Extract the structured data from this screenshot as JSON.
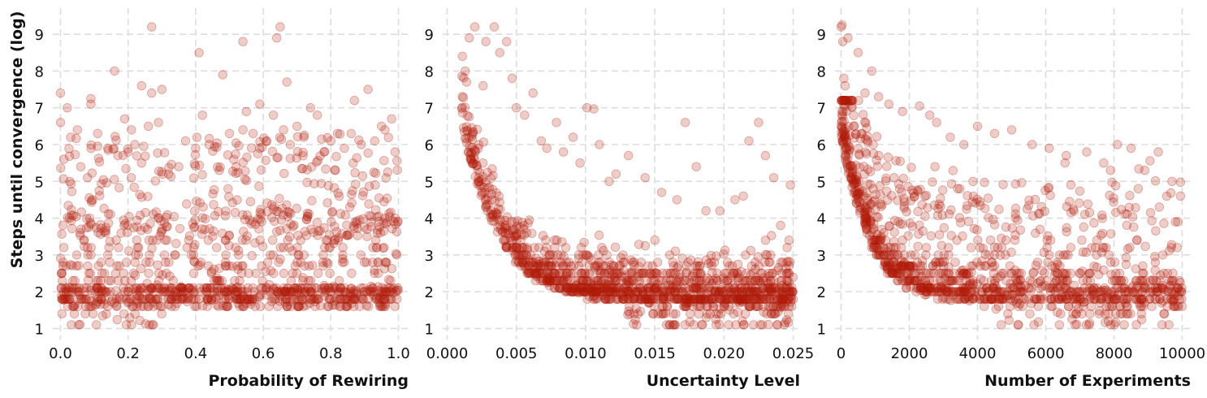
{
  "chart_data": [
    {
      "type": "scatter",
      "xlabel": "Probability of Rewiring",
      "ylabel": "Steps until convergence (log)",
      "xlim": [
        -0.03,
        1.03
      ],
      "ylim": [
        0.7,
        9.6
      ],
      "xticks": [
        0.0,
        0.2,
        0.4,
        0.6,
        0.8,
        1.0
      ],
      "xtick_labels": [
        "0.0",
        "0.2",
        "0.4",
        "0.6",
        "0.8",
        "1.0"
      ],
      "yticks": [
        1,
        2,
        3,
        4,
        5,
        6,
        7,
        8,
        9
      ],
      "ytick_labels": [
        "1",
        "2",
        "3",
        "4",
        "5",
        "6",
        "7",
        "8",
        "9"
      ],
      "grid": true,
      "color": "#b01a0a",
      "points": [
        [
          0.0,
          7.4
        ],
        [
          0.0,
          6.6
        ],
        [
          0.02,
          7.0
        ],
        [
          0.03,
          6.2
        ],
        [
          0.05,
          6.4
        ],
        [
          0.01,
          5.6
        ],
        [
          0.06,
          5.4
        ],
        [
          0.08,
          5.1
        ],
        [
          0.09,
          7.1
        ],
        [
          0.09,
          7.25
        ],
        [
          0.11,
          6.3
        ],
        [
          0.14,
          5.9
        ],
        [
          0.16,
          8.0
        ],
        [
          0.17,
          5.7
        ],
        [
          0.19,
          6.7
        ],
        [
          0.2,
          5.8
        ],
        [
          0.21,
          6.4
        ],
        [
          0.22,
          6.0
        ],
        [
          0.24,
          5.5
        ],
        [
          0.24,
          7.6
        ],
        [
          0.26,
          6.5
        ],
        [
          0.27,
          9.2
        ],
        [
          0.27,
          7.4
        ],
        [
          0.3,
          7.5
        ],
        [
          0.29,
          6.6
        ],
        [
          0.32,
          5.2
        ],
        [
          0.35,
          5.4
        ],
        [
          0.37,
          6.1
        ],
        [
          0.4,
          5.9
        ],
        [
          0.41,
          8.5
        ],
        [
          0.42,
          6.8
        ],
        [
          0.44,
          6.0
        ],
        [
          0.47,
          5.3
        ],
        [
          0.48,
          7.9
        ],
        [
          0.5,
          6.3
        ],
        [
          0.52,
          5.4
        ],
        [
          0.54,
          6.4
        ],
        [
          0.54,
          8.8
        ],
        [
          0.55,
          6.9
        ],
        [
          0.57,
          6.3
        ],
        [
          0.59,
          7.1
        ],
        [
          0.59,
          5.9
        ],
        [
          0.61,
          6.1
        ],
        [
          0.63,
          6.8
        ],
        [
          0.64,
          8.9
        ],
        [
          0.65,
          9.2
        ],
        [
          0.66,
          6.4
        ],
        [
          0.67,
          7.7
        ],
        [
          0.68,
          6.0
        ],
        [
          0.7,
          6.5
        ],
        [
          0.72,
          6.2
        ],
        [
          0.74,
          7.0
        ],
        [
          0.76,
          6.8
        ],
        [
          0.78,
          5.8
        ],
        [
          0.8,
          6.1
        ],
        [
          0.82,
          6.3
        ],
        [
          0.84,
          5.9
        ],
        [
          0.87,
          7.2
        ],
        [
          0.86,
          6.3
        ],
        [
          0.89,
          6.0
        ],
        [
          0.91,
          7.5
        ],
        [
          0.93,
          6.1
        ],
        [
          0.95,
          6.5
        ],
        [
          0.96,
          6.4
        ],
        [
          0.98,
          6.7
        ],
        [
          0.99,
          5.8
        ]
      ]
    },
    {
      "type": "scatter",
      "xlabel": "Uncertainty Level",
      "ylabel": "",
      "xlim": [
        -0.0005,
        0.0255
      ],
      "ylim": [
        0.7,
        9.6
      ],
      "xticks": [
        0.0,
        0.005,
        0.01,
        0.015,
        0.02,
        0.025
      ],
      "xtick_labels": [
        "0.000",
        "0.005",
        "0.010",
        "0.015",
        "0.020",
        "0.025"
      ],
      "yticks": [
        1,
        2,
        3,
        4,
        5,
        6,
        7,
        8,
        9
      ],
      "ytick_labels": [
        "1",
        "2",
        "3",
        "4",
        "5",
        "6",
        "7",
        "8",
        "9"
      ],
      "grid": true,
      "color": "#b01a0a",
      "points": [
        [
          0.0011,
          8.4
        ],
        [
          0.0013,
          8.0
        ],
        [
          0.0014,
          7.7
        ],
        [
          0.0016,
          8.9
        ],
        [
          0.002,
          9.2
        ],
        [
          0.0026,
          7.6
        ],
        [
          0.0028,
          8.8
        ],
        [
          0.0034,
          9.2
        ],
        [
          0.0038,
          8.5
        ],
        [
          0.0043,
          8.8
        ],
        [
          0.0047,
          7.8
        ],
        [
          0.005,
          7.0
        ],
        [
          0.0056,
          6.8
        ],
        [
          0.0062,
          7.4
        ],
        [
          0.0068,
          6.1
        ],
        [
          0.0072,
          5.9
        ],
        [
          0.0079,
          6.6
        ],
        [
          0.0084,
          5.8
        ],
        [
          0.0091,
          6.2
        ],
        [
          0.0096,
          5.5
        ],
        [
          0.0101,
          7.0
        ],
        [
          0.0106,
          6.97
        ],
        [
          0.011,
          6.0
        ],
        [
          0.0117,
          5.0
        ],
        [
          0.0122,
          5.2
        ],
        [
          0.0131,
          5.7
        ],
        [
          0.0143,
          5.1
        ],
        [
          0.0155,
          4.7
        ],
        [
          0.0166,
          4.5
        ],
        [
          0.0172,
          6.6
        ],
        [
          0.018,
          5.4
        ],
        [
          0.0187,
          4.2
        ],
        [
          0.0197,
          4.2
        ],
        [
          0.0208,
          4.5
        ],
        [
          0.0214,
          4.6
        ],
        [
          0.0218,
          6.1
        ],
        [
          0.0225,
          6.6
        ],
        [
          0.023,
          5.7
        ],
        [
          0.0236,
          5.1
        ],
        [
          0.0241,
          3.8
        ],
        [
          0.0248,
          4.9
        ],
        [
          0.0247,
          3.4
        ]
      ]
    },
    {
      "type": "scatter",
      "xlabel": "Number of Experiments",
      "ylabel": "",
      "xlim": [
        -250,
        10250
      ],
      "ylim": [
        0.7,
        9.6
      ],
      "xticks": [
        0,
        2000,
        4000,
        6000,
        8000,
        10000
      ],
      "xtick_labels": [
        "0",
        "2000",
        "4000",
        "6000",
        "8000",
        "10000"
      ],
      "yticks": [
        1,
        2,
        3,
        4,
        5,
        6,
        7,
        8,
        9
      ],
      "ytick_labels": [
        "1",
        "2",
        "3",
        "4",
        "5",
        "6",
        "7",
        "8",
        "9"
      ],
      "grid": true,
      "color": "#b01a0a",
      "points": [
        [
          0,
          9.2
        ],
        [
          30,
          9.25
        ],
        [
          50,
          8.8
        ],
        [
          200,
          8.9
        ],
        [
          80,
          7.8
        ],
        [
          120,
          7.6
        ],
        [
          500,
          8.5
        ],
        [
          700,
          7.4
        ],
        [
          900,
          8.0
        ],
        [
          1100,
          7.3
        ],
        [
          1400,
          7.1
        ],
        [
          1800,
          6.9
        ],
        [
          2300,
          7.05
        ],
        [
          2600,
          6.8
        ],
        [
          2800,
          6.6
        ],
        [
          3200,
          6.2
        ],
        [
          3600,
          6.0
        ],
        [
          4000,
          6.5
        ],
        [
          4500,
          6.3
        ],
        [
          5000,
          6.4
        ],
        [
          5600,
          6.0
        ],
        [
          6100,
          5.9
        ],
        [
          6600,
          5.7
        ],
        [
          7200,
          5.8
        ],
        [
          7700,
          5.5
        ],
        [
          8100,
          6.0
        ],
        [
          8500,
          5.9
        ],
        [
          8900,
          5.3
        ],
        [
          9300,
          5.8
        ],
        [
          9700,
          5.0
        ],
        [
          9950,
          4.6
        ]
      ]
    }
  ]
}
